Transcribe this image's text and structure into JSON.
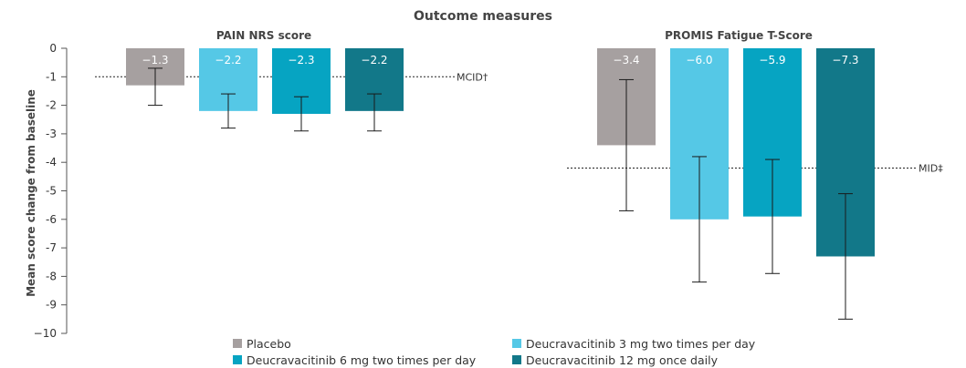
{
  "chart_data": {
    "type": "bar",
    "title": "Outcome measures",
    "ylabel": "Mean score change from baseline",
    "ylim": [
      -10,
      0
    ],
    "yticks": [
      0,
      -1,
      -2,
      -3,
      -4,
      -5,
      -6,
      -7,
      -8,
      -9,
      -10
    ],
    "ytick_labels": [
      "0",
      "-1",
      "-2",
      "-3",
      "-4",
      "-5",
      "-6",
      "-7",
      "-8",
      "-9",
      "−10"
    ],
    "grid": false,
    "legend_position": "bottom",
    "series": [
      {
        "name": "Placebo",
        "color": "#a6a0a0"
      },
      {
        "name": "Deucravacitinib 3 mg two times per day",
        "color": "#55c8e6"
      },
      {
        "name": "Deucravacitinib 6 mg two times per day",
        "color": "#06a4c2"
      },
      {
        "name": "Deucravacitinib 12 mg once daily",
        "color": "#127889"
      }
    ],
    "panels": [
      {
        "title": "PAIN NRS score",
        "values": [
          -1.3,
          -2.2,
          -2.3,
          -2.2
        ],
        "value_labels": [
          "−1.3",
          "−2.2",
          "−2.3",
          "−2.2"
        ],
        "error_low": [
          -2.0,
          -2.8,
          -2.9,
          -2.9
        ],
        "error_high": [
          -0.7,
          -1.6,
          -1.7,
          -1.6
        ],
        "reference_line": {
          "label": "MCID†",
          "value": -1.0
        }
      },
      {
        "title": "PROMIS Fatigue T-Score",
        "values": [
          -3.4,
          -6.0,
          -5.9,
          -7.3
        ],
        "value_labels": [
          "−3.4",
          "−6.0",
          "−5.9",
          "−7.3"
        ],
        "error_low": [
          -5.7,
          -8.2,
          -7.9,
          -9.5
        ],
        "error_high": [
          -1.1,
          -3.8,
          -3.9,
          -5.1
        ],
        "reference_line": {
          "label": "MID‡",
          "value": -4.2
        }
      }
    ]
  }
}
